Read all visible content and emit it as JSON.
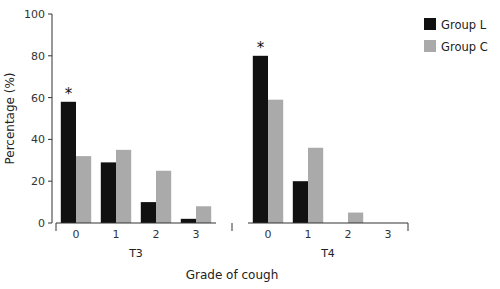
{
  "chart_data": {
    "type": "bar",
    "categories": [
      "0",
      "1",
      "2",
      "3",
      "0",
      "1",
      "2",
      "3"
    ],
    "groups": [
      "T3",
      "T4"
    ],
    "series": [
      {
        "name": "Group L",
        "color": "#111111",
        "values": [
          58,
          29,
          10,
          2,
          80,
          20,
          0,
          0
        ]
      },
      {
        "name": "Group C",
        "color": "#aaaaaa",
        "values": [
          32,
          35,
          25,
          8,
          59,
          36,
          5,
          0
        ]
      }
    ],
    "annotations": [
      {
        "text": "*",
        "series": 0,
        "index": 0
      },
      {
        "text": "*",
        "series": 0,
        "index": 4
      }
    ],
    "xlabel": "Grade of cough",
    "ylabel": "Percentage (%)",
    "ylim": [
      0,
      100
    ],
    "yticks": [
      0,
      20,
      40,
      60,
      80,
      100
    ],
    "legend": "right",
    "grid": false
  }
}
